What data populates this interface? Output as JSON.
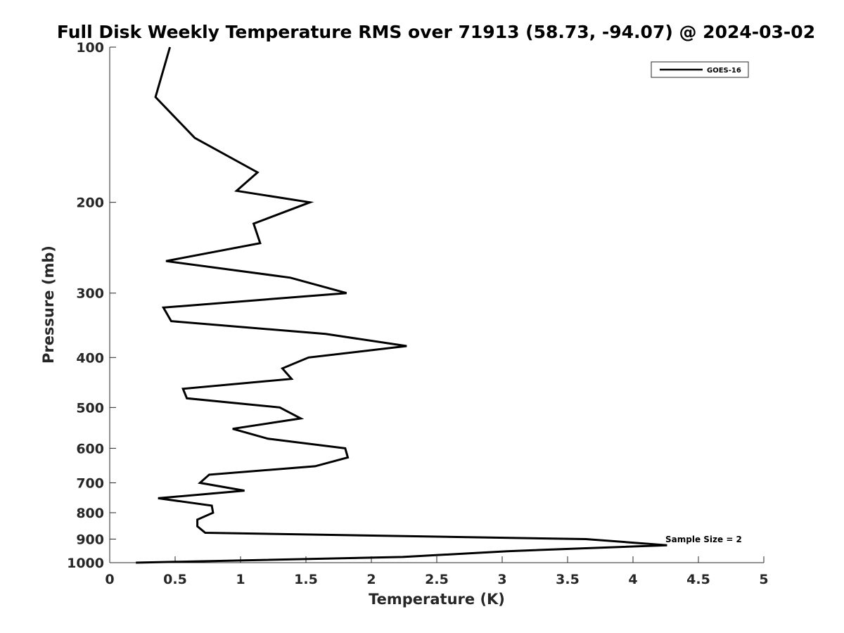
{
  "chart_data": {
    "type": "line",
    "title": "Full Disk Weekly Temperature RMS over 71913 (58.73, -94.07) @ 2024-03-02",
    "xlabel": "Temperature (K)",
    "ylabel": "Pressure (mb)",
    "xlim": [
      0,
      5
    ],
    "ylim": [
      1000,
      100
    ],
    "yscale": "log",
    "x_ticks": [
      "0",
      "0.5",
      "1",
      "1.5",
      "2",
      "2.5",
      "3",
      "3.5",
      "4",
      "4.5",
      "5"
    ],
    "y_ticks": [
      "100",
      "200",
      "300",
      "400",
      "500",
      "600",
      "700",
      "800",
      "900",
      "1000"
    ],
    "grid": false,
    "legend_position": "top-right",
    "series": [
      {
        "name": "GOES-16",
        "color": "#000000",
        "points": [
          [
            0.46,
            100
          ],
          [
            0.35,
            125
          ],
          [
            0.65,
            150
          ],
          [
            1.13,
            175
          ],
          [
            0.97,
            190
          ],
          [
            1.53,
            200
          ],
          [
            1.1,
            220
          ],
          [
            1.15,
            240
          ],
          [
            0.43,
            260
          ],
          [
            1.38,
            280
          ],
          [
            1.81,
            300
          ],
          [
            0.41,
            320
          ],
          [
            0.47,
            340
          ],
          [
            1.65,
            360
          ],
          [
            2.27,
            380
          ],
          [
            1.52,
            400
          ],
          [
            1.32,
            420
          ],
          [
            1.39,
            440
          ],
          [
            0.56,
            460
          ],
          [
            0.59,
            480
          ],
          [
            1.3,
            500
          ],
          [
            1.46,
            525
          ],
          [
            0.94,
            550
          ],
          [
            1.21,
            575
          ],
          [
            1.8,
            600
          ],
          [
            1.82,
            625
          ],
          [
            1.57,
            650
          ],
          [
            0.76,
            675
          ],
          [
            0.69,
            700
          ],
          [
            1.03,
            725
          ],
          [
            0.37,
            750
          ],
          [
            0.78,
            775
          ],
          [
            0.79,
            800
          ],
          [
            0.67,
            825
          ],
          [
            0.67,
            850
          ],
          [
            0.73,
            875
          ],
          [
            3.64,
            900
          ],
          [
            4.26,
            925
          ],
          [
            3.04,
            950
          ],
          [
            2.24,
            975
          ],
          [
            0.2,
            1000
          ]
        ]
      }
    ],
    "annotation": "Sample Size = 2"
  }
}
